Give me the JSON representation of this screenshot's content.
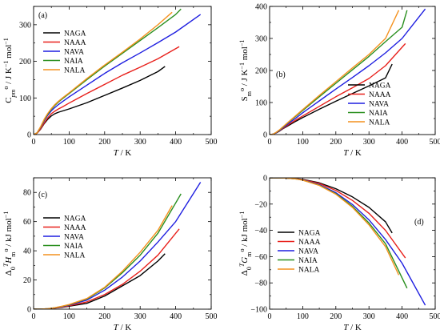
{
  "figure": {
    "series_colors": {
      "NAGA": "#000000",
      "NAAA": "#e8211c",
      "NAVA": "#1f1fe0",
      "NAIA": "#2a8f1f",
      "NALA": "#f4911e"
    }
  },
  "chart_data": [
    {
      "id": "a",
      "type": "line",
      "panel_label": "(a)",
      "ylabel_html": "C<tspan baseline-shift='sub' font-size='8' font-style='italic'>pm</tspan><tspan baseline-shift='super' font-size='8'>o</tspan> / J K<tspan baseline-shift='super' font-size='8'>−1</tspan> mol<tspan baseline-shift='super' font-size='8'>−1</tspan>",
      "xlabel_html": "<tspan font-style='italic'>T</tspan> / K",
      "xlim": [
        0,
        500
      ],
      "ylim": [
        0,
        350
      ],
      "xticks": [
        0,
        100,
        200,
        300,
        400,
        500
      ],
      "yticks": [
        0,
        100,
        200,
        300
      ],
      "legend_position": "top-left",
      "series": [
        {
          "name": "NAGA",
          "x": [
            0,
            10,
            20,
            30,
            40,
            50,
            60,
            70,
            80,
            100,
            150,
            200,
            250,
            300,
            350,
            370
          ],
          "y": [
            0,
            4,
            15,
            30,
            42,
            51,
            57,
            61,
            64,
            70,
            87,
            107,
            127,
            148,
            172,
            186
          ]
        },
        {
          "name": "NAAA",
          "x": [
            0,
            10,
            20,
            30,
            40,
            50,
            60,
            70,
            80,
            100,
            150,
            200,
            250,
            300,
            350,
            410
          ],
          "y": [
            0,
            4,
            16,
            32,
            46,
            57,
            64,
            70,
            75,
            86,
            112,
            137,
            162,
            184,
            207,
            240
          ]
        },
        {
          "name": "NAVA",
          "x": [
            0,
            10,
            20,
            30,
            40,
            50,
            60,
            70,
            80,
            100,
            150,
            200,
            250,
            300,
            350,
            400,
            470
          ],
          "y": [
            0,
            5,
            20,
            38,
            53,
            65,
            74,
            82,
            89,
            103,
            135,
            167,
            196,
            223,
            251,
            280,
            328
          ]
        },
        {
          "name": "NAIA",
          "x": [
            0,
            10,
            20,
            30,
            40,
            50,
            60,
            70,
            80,
            100,
            150,
            200,
            250,
            300,
            350,
            400,
            415
          ],
          "y": [
            0,
            5,
            21,
            40,
            56,
            69,
            80,
            89,
            97,
            112,
            150,
            187,
            222,
            257,
            292,
            328,
            343
          ]
        },
        {
          "name": "NALA",
          "x": [
            0,
            10,
            20,
            30,
            40,
            50,
            60,
            70,
            80,
            100,
            150,
            200,
            250,
            300,
            350,
            390
          ],
          "y": [
            0,
            5,
            22,
            42,
            58,
            71,
            82,
            91,
            99,
            114,
            153,
            190,
            225,
            261,
            300,
            334
          ]
        }
      ]
    },
    {
      "id": "b",
      "type": "line",
      "panel_label": "(b)",
      "ylabel_html": "S<tspan baseline-shift='sub' font-size='8'>m</tspan><tspan baseline-shift='super' font-size='8'>o</tspan> / J K<tspan baseline-shift='super' font-size='8'>−1</tspan> mol<tspan baseline-shift='super' font-size='8'>−1</tspan>",
      "xlabel_html": "<tspan font-style='italic'>T</tspan> / K",
      "xlim": [
        0,
        500
      ],
      "ylim": [
        0,
        400
      ],
      "xticks": [
        0,
        100,
        200,
        300,
        400,
        500
      ],
      "yticks": [
        0,
        100,
        200,
        300,
        400
      ],
      "legend_position": "bottom-right",
      "series": [
        {
          "name": "NAGA",
          "x": [
            0,
            10,
            20,
            30,
            40,
            50,
            60,
            80,
            100,
            150,
            200,
            250,
            300,
            350,
            370
          ],
          "y": [
            0,
            1,
            5,
            11,
            18,
            24,
            30,
            42,
            53,
            79,
            104,
            128,
            152,
            177,
            220
          ]
        },
        {
          "name": "NAAA",
          "x": [
            0,
            10,
            20,
            30,
            40,
            50,
            60,
            80,
            100,
            150,
            200,
            250,
            300,
            350,
            410
          ],
          "y": [
            0,
            1,
            6,
            12,
            19,
            26,
            33,
            46,
            58,
            88,
            118,
            146,
            175,
            215,
            284
          ]
        },
        {
          "name": "NAVA",
          "x": [
            0,
            10,
            20,
            30,
            40,
            50,
            60,
            80,
            100,
            150,
            200,
            250,
            300,
            350,
            400,
            470
          ],
          "y": [
            0,
            1,
            6,
            13,
            21,
            29,
            37,
            52,
            68,
            105,
            142,
            178,
            215,
            255,
            300,
            392
          ]
        },
        {
          "name": "NAIA",
          "x": [
            0,
            10,
            20,
            30,
            40,
            50,
            60,
            80,
            100,
            150,
            200,
            250,
            300,
            350,
            400,
            415
          ],
          "y": [
            0,
            1,
            7,
            14,
            23,
            32,
            41,
            58,
            75,
            118,
            160,
            202,
            244,
            290,
            335,
            388
          ]
        },
        {
          "name": "NALA",
          "x": [
            0,
            10,
            20,
            30,
            40,
            50,
            60,
            80,
            100,
            150,
            200,
            250,
            300,
            350,
            390
          ],
          "y": [
            0,
            1,
            7,
            15,
            24,
            33,
            42,
            60,
            78,
            122,
            165,
            208,
            250,
            300,
            388
          ]
        }
      ]
    },
    {
      "id": "c",
      "type": "line",
      "panel_label": "(c)",
      "ylabel_html": "Δ<tspan baseline-shift='sub' font-size='8'>0</tspan><tspan baseline-shift='super' font-size='8' font-style='italic'>T</tspan><tspan font-style='italic'>H</tspan><tspan baseline-shift='sub' font-size='8'>m</tspan><tspan baseline-shift='super' font-size='8'>o</tspan> / kJ mol<tspan baseline-shift='super' font-size='8'>−1</tspan>",
      "xlabel_html": "<tspan font-style='italic'>T</tspan> / K",
      "xlim": [
        0,
        500
      ],
      "ylim": [
        0,
        90
      ],
      "xticks": [
        0,
        100,
        200,
        300,
        400,
        500
      ],
      "yticks": [
        0,
        20,
        40,
        60,
        80
      ],
      "legend_position": "top-left",
      "series": [
        {
          "name": "NAGA",
          "x": [
            0,
            20,
            40,
            60,
            80,
            100,
            150,
            200,
            250,
            300,
            350,
            370
          ],
          "y": [
            0,
            0.02,
            0.2,
            0.7,
            1.3,
            2.0,
            4.0,
            9.0,
            16.0,
            23.0,
            33.0,
            38.0
          ]
        },
        {
          "name": "NAAA",
          "x": [
            0,
            20,
            40,
            60,
            80,
            100,
            150,
            200,
            250,
            300,
            350,
            410
          ],
          "y": [
            0,
            0.02,
            0.2,
            0.8,
            1.4,
            2.3,
            5.0,
            10.0,
            17.0,
            26.0,
            37.0,
            55.0
          ]
        },
        {
          "name": "NAVA",
          "x": [
            0,
            20,
            40,
            60,
            80,
            100,
            150,
            200,
            250,
            300,
            350,
            400,
            470
          ],
          "y": [
            0,
            0.03,
            0.3,
            0.9,
            1.7,
            2.8,
            6.2,
            13.0,
            22.0,
            33.0,
            46.0,
            60.0,
            87.0
          ]
        },
        {
          "name": "NAIA",
          "x": [
            0,
            20,
            40,
            60,
            80,
            100,
            150,
            200,
            250,
            300,
            350,
            415
          ],
          "y": [
            0,
            0.03,
            0.3,
            1.0,
            1.9,
            3.0,
            7.0,
            14.5,
            25.0,
            37.0,
            52.0,
            79.0
          ]
        },
        {
          "name": "NALA",
          "x": [
            0,
            20,
            40,
            60,
            80,
            100,
            150,
            200,
            250,
            300,
            350,
            390
          ],
          "y": [
            0,
            0.03,
            0.3,
            1.0,
            2.0,
            3.2,
            7.3,
            15.0,
            26.0,
            39.0,
            54.0,
            71.0
          ]
        }
      ]
    },
    {
      "id": "d",
      "type": "line",
      "panel_label": "(d)",
      "ylabel_html": "Δ<tspan baseline-shift='sub' font-size='8'>0</tspan><tspan baseline-shift='super' font-size='8' font-style='italic'>T</tspan><tspan font-style='italic'>G</tspan><tspan baseline-shift='sub' font-size='8'>m</tspan><tspan baseline-shift='super' font-size='8'>o</tspan> / kJ mol<tspan baseline-shift='super' font-size='8'>−1</tspan>",
      "xlabel_html": "<tspan font-style='italic'>T</tspan> / K",
      "xlim": [
        0,
        500
      ],
      "ylim": [
        -100,
        0
      ],
      "xticks": [
        0,
        100,
        200,
        300,
        400,
        500
      ],
      "yticks": [
        0,
        -20,
        -40,
        -60,
        -80,
        -100
      ],
      "legend_position": "bottom-left",
      "series": [
        {
          "name": "NAGA",
          "x": [
            0,
            20,
            40,
            60,
            80,
            100,
            150,
            200,
            250,
            300,
            350,
            370
          ],
          "y": [
            0,
            -0.01,
            -0.1,
            -0.3,
            -0.6,
            -1.2,
            -3.8,
            -8.3,
            -14.5,
            -22.5,
            -33.5,
            -42.0
          ]
        },
        {
          "name": "NAAA",
          "x": [
            0,
            20,
            40,
            60,
            80,
            100,
            150,
            200,
            250,
            300,
            350,
            410
          ],
          "y": [
            0,
            -0.01,
            -0.1,
            -0.3,
            -0.7,
            -1.4,
            -4.3,
            -9.6,
            -17.2,
            -27.0,
            -40.0,
            -61.0
          ]
        },
        {
          "name": "NAVA",
          "x": [
            0,
            20,
            40,
            60,
            80,
            100,
            150,
            200,
            250,
            300,
            350,
            400,
            470
          ],
          "y": [
            0,
            -0.01,
            -0.1,
            -0.4,
            -0.8,
            -1.6,
            -5.2,
            -11.3,
            -20.3,
            -32.0,
            -47.0,
            -65.0,
            -97.0
          ]
        },
        {
          "name": "NAIA",
          "x": [
            0,
            20,
            40,
            60,
            80,
            100,
            150,
            200,
            250,
            300,
            350,
            415
          ],
          "y": [
            0,
            -0.01,
            -0.1,
            -0.4,
            -0.9,
            -1.7,
            -5.6,
            -12.1,
            -21.7,
            -34.4,
            -50.2,
            -84.0
          ]
        },
        {
          "name": "NALA",
          "x": [
            0,
            20,
            40,
            60,
            80,
            100,
            150,
            200,
            250,
            300,
            350,
            390
          ],
          "y": [
            0,
            -0.01,
            -0.1,
            -0.4,
            -0.9,
            -1.8,
            -5.8,
            -12.5,
            -22.5,
            -35.8,
            -52.4,
            -74.0
          ]
        }
      ]
    }
  ]
}
